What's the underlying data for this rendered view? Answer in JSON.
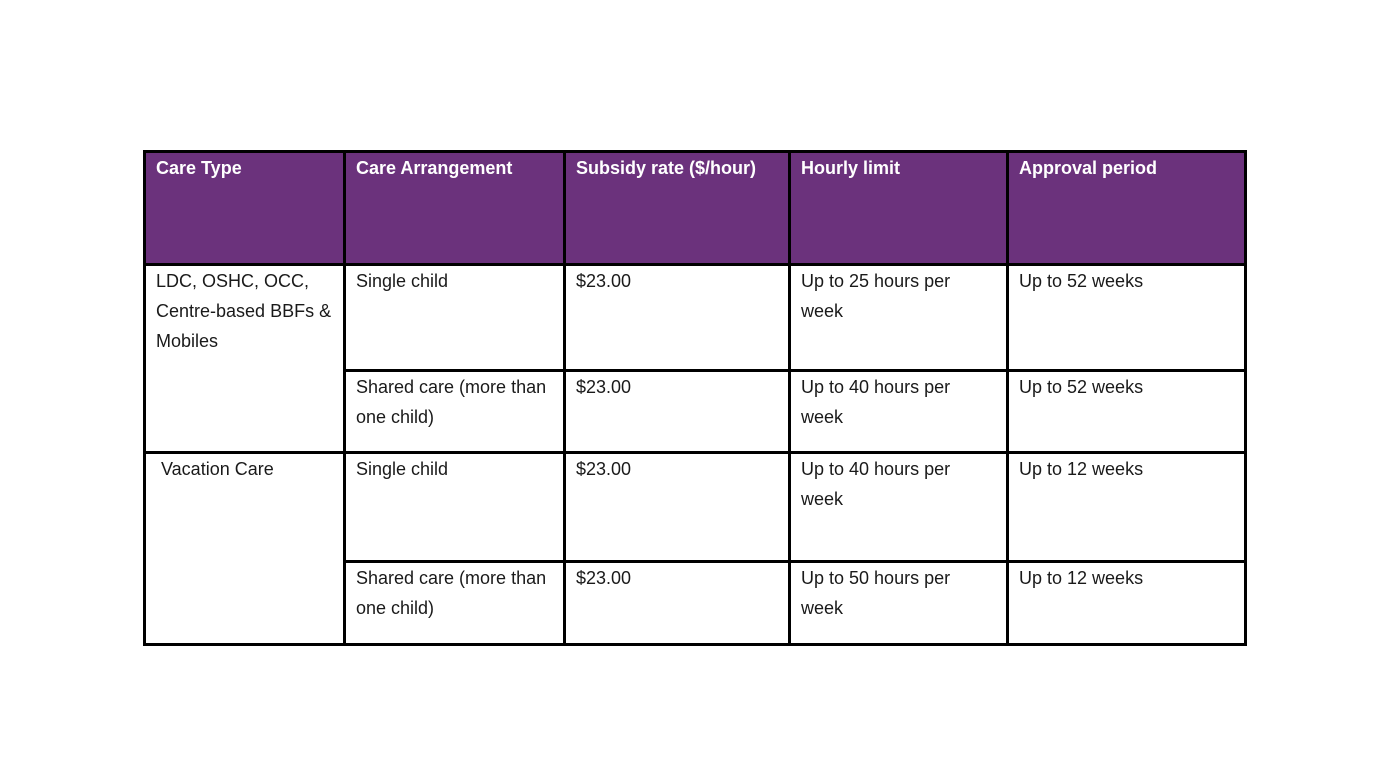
{
  "table": {
    "headers": [
      "Care Type",
      "Care Arrangement",
      "Subsidy rate ($/hour)",
      "Hourly limit",
      "Approval period"
    ],
    "groups": [
      {
        "care_type": "LDC, OSHC, OCC, Centre-based BBFs & Mobiles",
        "rows": [
          {
            "arrangement": "Single child",
            "rate": "$23.00",
            "limit": "Up to 25 hours per week",
            "period": "Up to 52 weeks"
          },
          {
            "arrangement": "Shared care (more than one child)",
            "rate": "$23.00",
            "limit": "Up to 40 hours per week",
            "period": "Up to 52 weeks"
          }
        ]
      },
      {
        "care_type": "Vacation Care",
        "rows": [
          {
            "arrangement": "Single child",
            "rate": "$23.00",
            "limit": "Up to 40 hours per week",
            "period": "Up to 12 weeks"
          },
          {
            "arrangement": "Shared care (more than one child)",
            "rate": "$23.00",
            "limit": "Up to 50 hours per week",
            "period": "Up to 12 weeks"
          }
        ]
      }
    ]
  },
  "colors": {
    "header_background": "#6b327c",
    "header_text": "#ffffff",
    "border": "#000000"
  }
}
